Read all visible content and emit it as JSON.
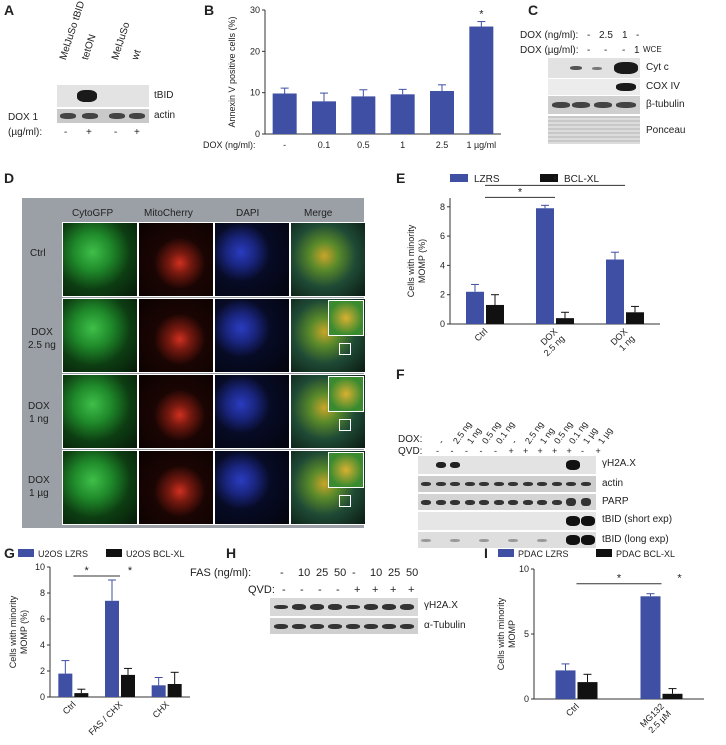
{
  "panels": {
    "A": "A",
    "B": "B",
    "C": "C",
    "D": "D",
    "E": "E",
    "F": "F",
    "G": "G",
    "H": "H",
    "I": "I"
  },
  "panelA": {
    "col1": "MelJuSo tBID",
    "col1b": "tetON",
    "col2": "MelJuSo",
    "col2b": "wt",
    "rows": [
      "tBID",
      "actin"
    ],
    "dox_label": "DOX 1",
    "dox_unit": "(µg/ml):",
    "signs": [
      "-",
      "+",
      "-",
      "+"
    ]
  },
  "panelC": {
    "dox_ng_label": "DOX (ng/ml):",
    "dox_ng": [
      "-",
      "2.5",
      "1",
      "-"
    ],
    "dox_ug_label": "DOX (µg/ml):",
    "dox_ug": [
      "-",
      "-",
      "-",
      "1"
    ],
    "wce": "WCE",
    "rows": [
      "Cyt c",
      "COX IV",
      "β-tubulin",
      "Ponceau"
    ]
  },
  "panelD": {
    "cols": [
      "CytoGFP",
      "MitoCherry",
      "DAPI",
      "Merge"
    ],
    "rows": [
      "Ctrl",
      "DOX\n2.5 ng",
      "DOX\n1 ng",
      "DOX\n1 µg"
    ]
  },
  "panelF": {
    "dox_label": "DOX:",
    "qvd_label": "QVD:",
    "dox": [
      "-",
      "2.5 ng",
      "1 ng",
      "0.5 ng",
      "0.1 ng",
      "-",
      "2.5 ng",
      "1 ng",
      "0.5 ng",
      "0.1 ng",
      "1 µg",
      "1 µg"
    ],
    "qvd": [
      "-",
      "-",
      "-",
      "-",
      "-",
      "+",
      "+",
      "+",
      "+",
      "+",
      "-",
      "+"
    ],
    "rows": [
      "γH2A.X",
      "actin",
      "PARP",
      "tBID (short exp)",
      "tBID (long exp)"
    ]
  },
  "panelH": {
    "fas_label": "FAS (ng/ml):",
    "fas": [
      "-",
      "10",
      "25",
      "50",
      "-",
      "10",
      "25",
      "50"
    ],
    "qvd_label": "QVD:",
    "qvd": [
      "-",
      "-",
      "-",
      "-",
      "+",
      "+",
      "+",
      "+"
    ],
    "rows": [
      "γH2A.X",
      "α-Tubulin"
    ]
  },
  "chart_data": [
    {
      "id": "B",
      "type": "bar",
      "ylabel": "Annexin V positive cells (%)",
      "xlabel": "DOX (ng/ml):",
      "categories": [
        "-",
        "0.1",
        "0.5",
        "1",
        "2.5",
        "1 µg/ml"
      ],
      "values": [
        9.8,
        7.9,
        9.1,
        9.6,
        10.4,
        26.0
      ],
      "errors": [
        1.3,
        2.0,
        1.6,
        1.2,
        1.5,
        1.2
      ],
      "yticks": [
        0,
        10,
        20,
        30
      ],
      "ylim": [
        0,
        30
      ],
      "annotation": "*",
      "color": "#3f4fa3"
    },
    {
      "id": "E",
      "type": "bar",
      "ylabel": "Cells with minority MOMP (%)",
      "categories": [
        "Ctrl",
        "DOX\n2.5 ng",
        "DOX\n1 ng"
      ],
      "series": [
        {
          "name": "LZRS",
          "values": [
            2.2,
            7.9,
            4.4
          ],
          "errors": [
            0.5,
            0.2,
            0.5
          ],
          "color": "#3f4fa3"
        },
        {
          "name": "BCL-XL",
          "values": [
            1.3,
            0.4,
            0.8
          ],
          "errors": [
            0.7,
            0.4,
            0.4
          ],
          "color": "#111111"
        }
      ],
      "yticks": [
        0,
        2,
        4,
        6,
        8
      ],
      "ylim": [
        0,
        8.6
      ],
      "sig": [
        "*",
        "*"
      ]
    },
    {
      "id": "G",
      "type": "bar",
      "ylabel": "Cells with minority MOMP (%)",
      "categories": [
        "Ctrl",
        "FAS / CHX",
        "CHX"
      ],
      "series": [
        {
          "name": "U2OS LZRS",
          "values": [
            1.8,
            7.4,
            0.9
          ],
          "errors": [
            1.0,
            1.6,
            0.6
          ],
          "color": "#3f4fa3"
        },
        {
          "name": "U2OS BCL-XL",
          "values": [
            0.3,
            1.7,
            1.0
          ],
          "errors": [
            0.3,
            0.5,
            0.9
          ],
          "color": "#111111"
        }
      ],
      "yticks": [
        0,
        2,
        4,
        6,
        8,
        10
      ],
      "ylim": [
        0,
        10
      ],
      "sig": [
        "*",
        "*"
      ]
    },
    {
      "id": "I",
      "type": "bar",
      "ylabel": "Cells with minority MOMP",
      "categories": [
        "Ctrl",
        "MG132\n2.5 µM"
      ],
      "series": [
        {
          "name": "PDAC LZRS",
          "values": [
            2.2,
            7.9
          ],
          "errors": [
            0.5,
            0.2
          ],
          "color": "#3f4fa3"
        },
        {
          "name": "PDAC BCL-XL",
          "values": [
            1.3,
            0.4
          ],
          "errors": [
            0.6,
            0.4
          ],
          "color": "#111111"
        }
      ],
      "yticks": [
        0,
        5,
        10
      ],
      "ylim": [
        0,
        10
      ],
      "sig": [
        "*",
        "*"
      ]
    }
  ]
}
